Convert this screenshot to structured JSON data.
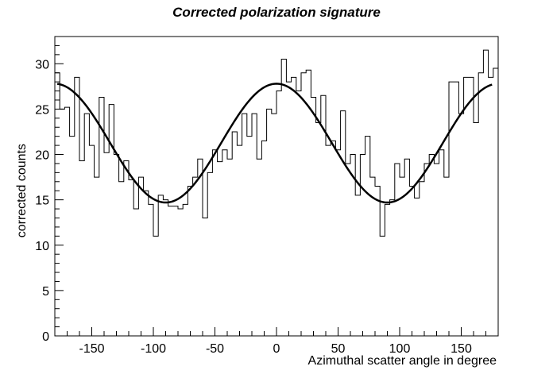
{
  "chart_data": {
    "type": "histogram",
    "title": "Corrected polarization signature",
    "xlabel": "Azimuthal scatter angle in degree",
    "ylabel": "corrected counts",
    "xlim": [
      -180,
      180
    ],
    "ylim": [
      0,
      33
    ],
    "xticks": [
      -150,
      -100,
      -50,
      0,
      50,
      100,
      150
    ],
    "yticks": [
      0,
      5,
      10,
      15,
      20,
      25,
      30
    ],
    "bin_width": 4,
    "bins_x_start": -180,
    "series": [
      {
        "kind": "histogram",
        "values": [
          29.0,
          25.0,
          25.2,
          22.0,
          28.5,
          19.3,
          24.5,
          21.0,
          17.5,
          26.3,
          20.2,
          25.5,
          20.0,
          17.0,
          19.3,
          17.2,
          14.0,
          17.5,
          16.0,
          14.5,
          11.0,
          15.5,
          15.0,
          14.3,
          14.3,
          14.0,
          14.5,
          16.5,
          17.5,
          19.5,
          13.0,
          18.0,
          20.5,
          19.2,
          20.5,
          19.5,
          22.5,
          21.0,
          24.5,
          22.0,
          24.5,
          19.5,
          21.5,
          25.0,
          24.5,
          27.0,
          30.5,
          28.0,
          28.5,
          27.0,
          29.0,
          29.3,
          26.3,
          23.5,
          26.5,
          21.0,
          21.5,
          20.5,
          24.8,
          19.0,
          20.0,
          15.5,
          20.0,
          22.0,
          17.5,
          16.5,
          11.0,
          14.5,
          15.0,
          19.0,
          17.5,
          19.5,
          16.5,
          15.2,
          17.0,
          19.0,
          20.0,
          19.0,
          20.5,
          17.5,
          28.0,
          28.0,
          24.5,
          28.5,
          28.5,
          23.5,
          29.0,
          31.5,
          28.5,
          29.5
        ]
      },
      {
        "kind": "fit",
        "function": "A + B*cos^2(phi)",
        "A": 14.7,
        "B": 13.1
      }
    ]
  }
}
